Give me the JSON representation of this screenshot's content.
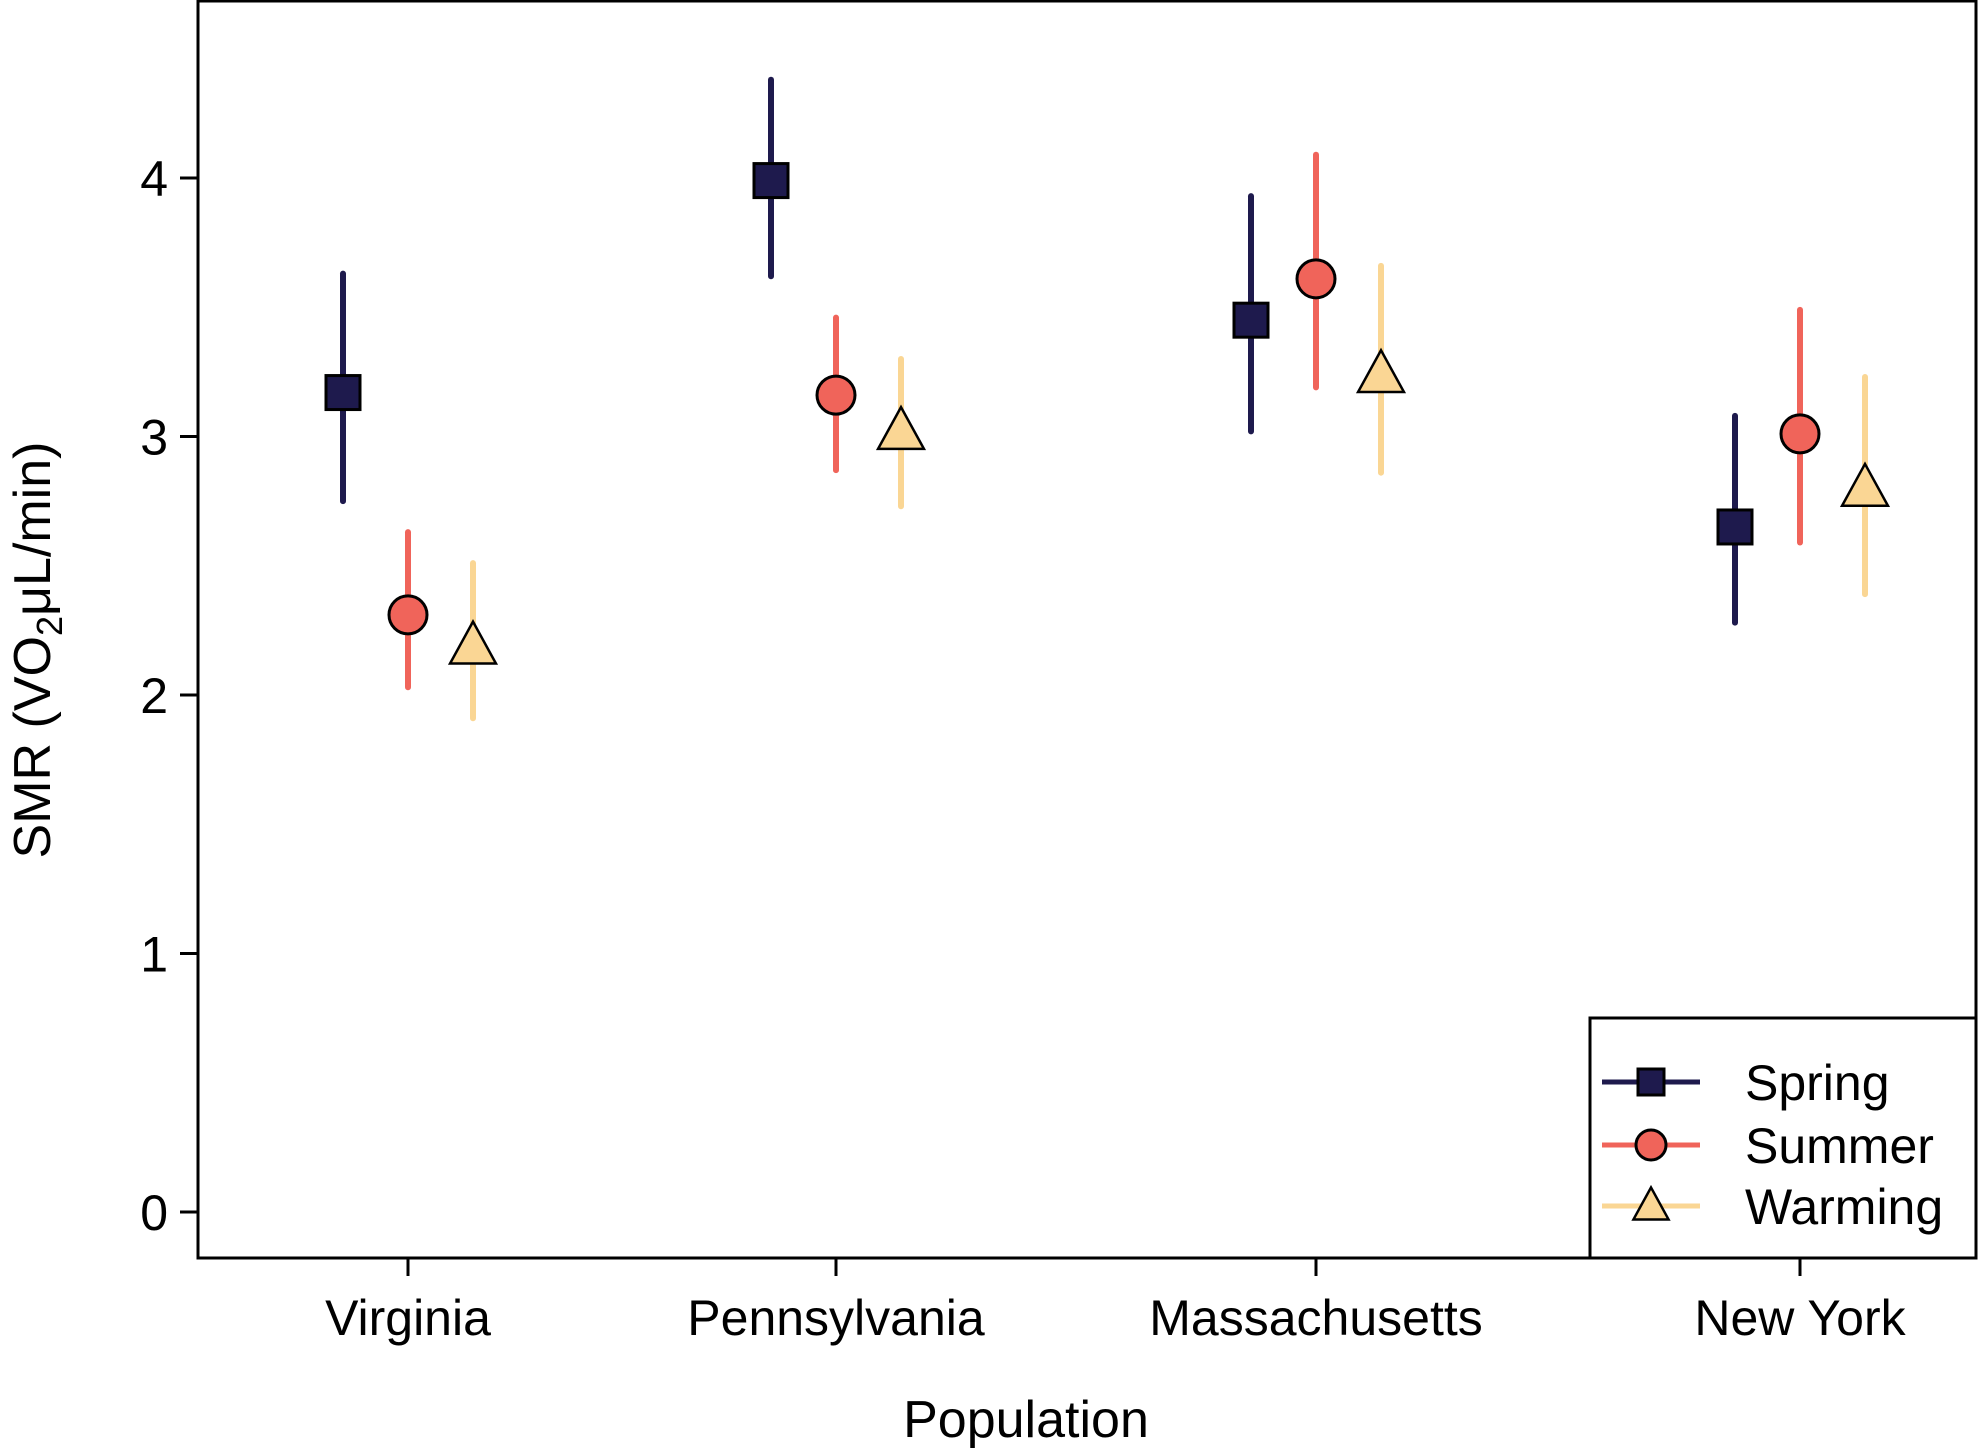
{
  "chart_data": {
    "type": "scatter",
    "xlabel": "Population",
    "ylabel_main": "SMR (VO",
    "ylabel_sub": "2",
    "ylabel_rest": "μL/min)",
    "categories": [
      "Virginia",
      "Pennsylvania",
      "Massachusetts",
      "New York"
    ],
    "ylim": [
      0,
      4.6
    ],
    "yticks": [
      "0",
      "1",
      "2",
      "3",
      "4"
    ],
    "grid": false,
    "legend_position": "bottom-right",
    "series": [
      {
        "name": "Spring",
        "marker": "square",
        "color": "#1e1a4d",
        "values": [
          3.17,
          3.99,
          3.45,
          2.65
        ],
        "lower": [
          2.75,
          3.62,
          3.02,
          2.28
        ],
        "upper": [
          3.63,
          4.38,
          3.93,
          3.08
        ]
      },
      {
        "name": "Summer",
        "marker": "circle",
        "color": "#f0645a",
        "values": [
          2.31,
          3.16,
          3.61,
          3.01
        ],
        "lower": [
          2.03,
          2.87,
          3.19,
          2.59
        ],
        "upper": [
          2.63,
          3.46,
          4.09,
          3.49
        ]
      },
      {
        "name": "Warming",
        "marker": "triangle",
        "color": "#fad694",
        "values": [
          2.19,
          3.02,
          3.24,
          2.8
        ],
        "lower": [
          1.91,
          2.73,
          2.86,
          2.39
        ],
        "upper": [
          2.51,
          3.3,
          3.66,
          3.23
        ]
      }
    ]
  }
}
